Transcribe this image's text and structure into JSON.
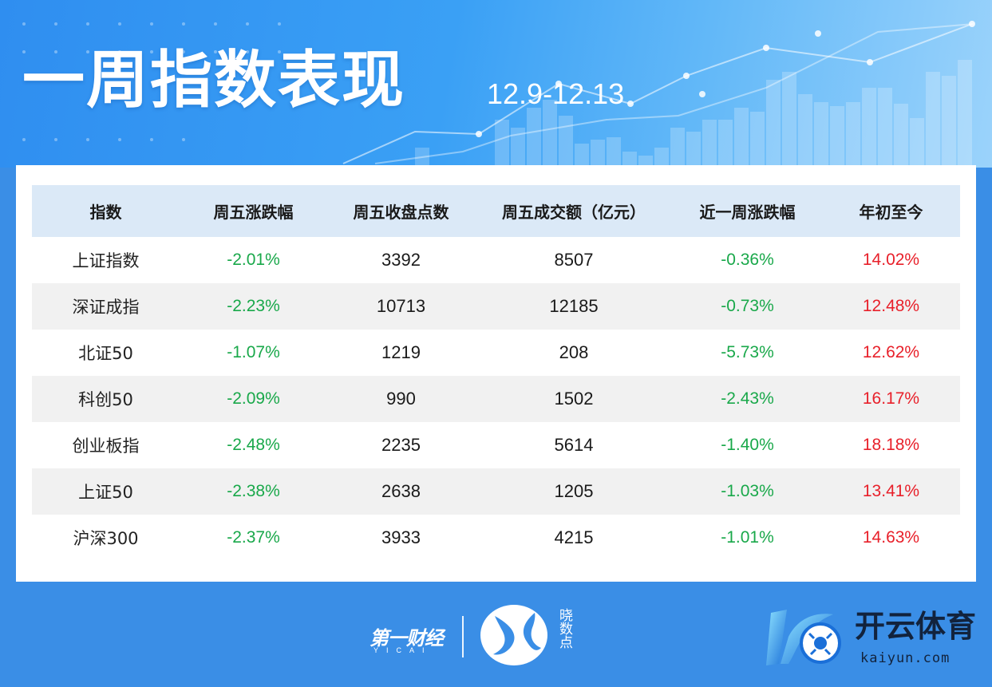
{
  "header": {
    "title": "一周指数表现",
    "date_range": "12.9-12.13"
  },
  "table": {
    "columns": [
      "指数",
      "周五涨跌幅",
      "周五收盘点数",
      "周五成交额（亿元）",
      "近一周涨跌幅",
      "年初至今"
    ],
    "rows": [
      [
        "上证指数",
        "-2.01%",
        "3392",
        "8507",
        "-0.36%",
        "14.02%"
      ],
      [
        "深证成指",
        "-2.23%",
        "10713",
        "12185",
        "-0.73%",
        "12.48%"
      ],
      [
        "北证50",
        "-1.07%",
        "1219",
        "208",
        "-5.73%",
        "12.62%"
      ],
      [
        "科创50",
        "-2.09%",
        "990",
        "1502",
        "-2.43%",
        "16.17%"
      ],
      [
        "创业板指",
        "-2.48%",
        "2235",
        "5614",
        "-1.40%",
        "18.18%"
      ],
      [
        "上证50",
        "-2.38%",
        "2638",
        "1205",
        "-1.03%",
        "13.41%"
      ],
      [
        "沪深300",
        "-2.37%",
        "3933",
        "4215",
        "-1.01%",
        "14.63%"
      ]
    ]
  },
  "footer": {
    "brand_yicai": "第一财经",
    "brand_yicai_sub": "YICAI",
    "brand_xiaoshudian": "晓数点",
    "brand_kaiyun": "开云体育",
    "brand_kaiyun_url": "kaiyun.com"
  },
  "colors": {
    "background": "#3a8ee6",
    "negative": "#19a84a",
    "positive": "#e8202a",
    "header_row": "#dbe9f7",
    "alt_row": "#f1f1f1"
  },
  "icons": [
    "yicai-logo",
    "xiaoshudian-logo-icon",
    "kaiyun-logo-icon"
  ]
}
